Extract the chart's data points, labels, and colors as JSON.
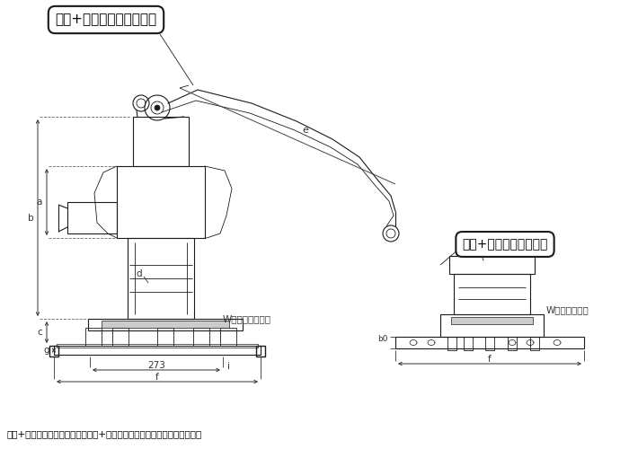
{
  "bg_color": "#ffffff",
  "line_color": "#1a1a1a",
  "dim_color": "#333333",
  "label_box1_text": "高台+鉄ベース付きタイプ",
  "label_box2_text": "高台+木台板付きタイプ",
  "footer_text": "高台+鉄ベース付きタイプ及び高台+木台付きタイプは、掘り井戸用です。",
  "w_label1": "W：鉄ベースの幅",
  "w_label2": "W：木台板の幅",
  "dim_273": "273",
  "dim_i": "i",
  "dim_f": "f",
  "dim_a": "a",
  "dim_b": "b",
  "dim_c": "c",
  "dim_d": "d",
  "dim_e": "e",
  "dim_g": "g",
  "dim_b0": "b0"
}
